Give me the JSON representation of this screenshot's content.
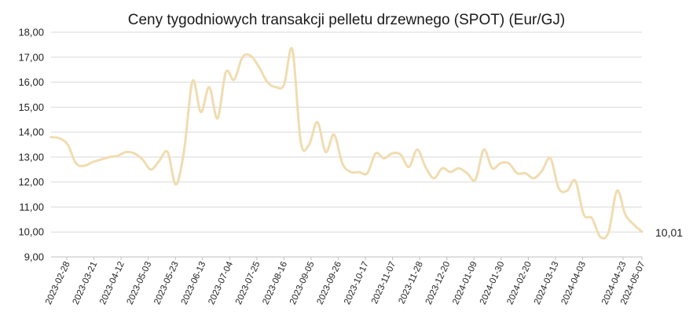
{
  "chart_data": {
    "type": "line",
    "title": "Ceny tygodniowych transakcji pelletu drzewnego (SPOT) (Eur/GJ)",
    "ylim": [
      9,
      18
    ],
    "yticks": [
      "9,00",
      "10,00",
      "11,00",
      "12,00",
      "13,00",
      "14,00",
      "15,00",
      "16,00",
      "17,00",
      "18,00"
    ],
    "xtick_labels": [
      "2023-02-28",
      "2023-03-21",
      "2023-04-12",
      "2023-05-03",
      "2023-05-23",
      "2023-06-13",
      "2023-07-04",
      "2023-07-25",
      "2023-08-16",
      "2023-09-05",
      "2023-09-26",
      "2023-10-17",
      "2023-11-07",
      "2023-11-28",
      "2023-12-20",
      "2024-01-09",
      "2024-01-30",
      "2024-02-20",
      "2024-03-13",
      "2024-04-03",
      "2024-04-23",
      "2024-05-07"
    ],
    "grid": true,
    "legend": "none",
    "line_color": "#f0dcb0",
    "end_label": "10,01",
    "series": [
      {
        "values": [
          13.8,
          13.75,
          13.5,
          12.75,
          12.65,
          12.8,
          12.9,
          13.0,
          13.05,
          13.2,
          13.15,
          12.9,
          12.5,
          12.85,
          13.2,
          11.9,
          13.3,
          16.05,
          14.8,
          15.8,
          14.55,
          16.4,
          16.1,
          17.0,
          17.05,
          16.6,
          16.0,
          15.8,
          15.9,
          17.3,
          13.6,
          13.5,
          14.4,
          13.2,
          13.9,
          12.75,
          12.4,
          12.4,
          12.35,
          13.15,
          12.95,
          13.15,
          13.1,
          12.6,
          13.3,
          12.6,
          12.15,
          12.55,
          12.4,
          12.55,
          12.35,
          12.1,
          13.3,
          12.55,
          12.75,
          12.75,
          12.35,
          12.35,
          12.15,
          12.45,
          12.95,
          11.75,
          11.65,
          12.05,
          10.7,
          10.55,
          9.8,
          10.0,
          11.65,
          10.7,
          10.3,
          10.01
        ]
      }
    ]
  }
}
